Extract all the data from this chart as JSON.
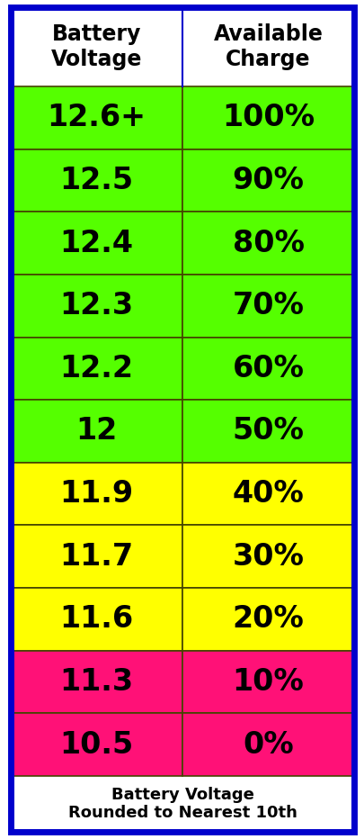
{
  "rows": [
    {
      "voltage": "12.6+",
      "charge": "100%",
      "color": "#55FF00"
    },
    {
      "voltage": "12.5",
      "charge": "90%",
      "color": "#55FF00"
    },
    {
      "voltage": "12.4",
      "charge": "80%",
      "color": "#55FF00"
    },
    {
      "voltage": "12.3",
      "charge": "70%",
      "color": "#55FF00"
    },
    {
      "voltage": "12.2",
      "charge": "60%",
      "color": "#55FF00"
    },
    {
      "voltage": "12",
      "charge": "50%",
      "color": "#55FF00"
    },
    {
      "voltage": "11.9",
      "charge": "40%",
      "color": "#FFFF00"
    },
    {
      "voltage": "11.7",
      "charge": "30%",
      "color": "#FFFF00"
    },
    {
      "voltage": "11.6",
      "charge": "20%",
      "color": "#FFFF00"
    },
    {
      "voltage": "11.3",
      "charge": "10%",
      "color": "#FF1177"
    },
    {
      "voltage": "10.5",
      "charge": "0%",
      "color": "#FF1177"
    }
  ],
  "col1_header": "Battery\nVoltage",
  "col2_header": "Available\nCharge",
  "footer": "Battery Voltage\nRounded to Nearest 10th",
  "border_color": "#0000CC",
  "cell_line_color": "#444400",
  "text_color": "#000000",
  "header_fontsize": 17,
  "cell_fontsize": 24,
  "footer_fontsize": 13,
  "background_color": "#FFFFFF",
  "fig_width": 4.06,
  "fig_height": 9.32
}
